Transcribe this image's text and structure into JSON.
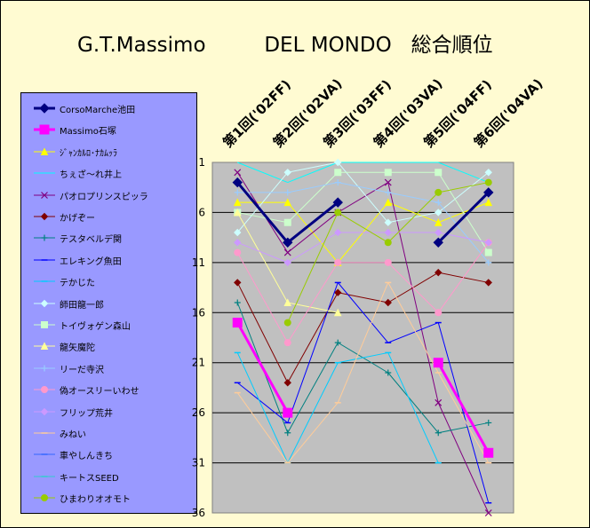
{
  "title": "G.T.Massimo         DEL MONDO   総合順位",
  "chart_data": {
    "type": "line",
    "title": "G.T.Massimo         DEL MONDO   総合順位",
    "categories": [
      "第1回('02FF)",
      "第2回('02VA)",
      "第3回('03FF)",
      "第4回('03VA)",
      "第5回('04FF)",
      "第6回('04VA)"
    ],
    "yaxis": {
      "inverted": true,
      "ylim": [
        1,
        36
      ],
      "ticks": [
        "1",
        "6",
        "11",
        "16",
        "21",
        "26",
        "31",
        "36"
      ],
      "grid": true
    },
    "legend_position": "left",
    "series": [
      {
        "name": "CorsoMarche池田",
        "color": "#000080",
        "marker": "diamond",
        "bold": true,
        "values": [
          3,
          9,
          5,
          null,
          9,
          4
        ]
      },
      {
        "name": "Massimo石塚",
        "color": "#ff00ff",
        "marker": "square",
        "bold": true,
        "values": [
          17,
          26,
          null,
          null,
          21,
          30
        ]
      },
      {
        "name": "ｼﾞｬﾝｶﾙﾛ･ﾅｶﾑｯﾗ",
        "color": "#ffff00",
        "marker": "triangle",
        "values": [
          5,
          5,
          11,
          5,
          7,
          5
        ]
      },
      {
        "name": "ちぇざ～れ井上",
        "color": "#00ffff",
        "marker": "none",
        "values": [
          1,
          3,
          1,
          1,
          1,
          3
        ]
      },
      {
        "name": "パオロプリンスピッラ",
        "color": "#800080",
        "marker": "x",
        "values": [
          2,
          10,
          6,
          3,
          25,
          36
        ]
      },
      {
        "name": "かげぞー",
        "color": "#800000",
        "marker": "diamond",
        "values": [
          13,
          23,
          14,
          15,
          12,
          13
        ]
      },
      {
        "name": "テスタベルデ関",
        "color": "#008080",
        "marker": "plus",
        "values": [
          15,
          28,
          19,
          22,
          28,
          27
        ]
      },
      {
        "name": "エレキング魚田",
        "color": "#0000ff",
        "marker": "dash",
        "values": [
          23,
          27,
          13,
          19,
          17,
          35
        ]
      },
      {
        "name": "テかじた",
        "color": "#00ccff",
        "marker": "dash",
        "values": [
          20,
          31,
          21,
          20,
          31,
          null
        ]
      },
      {
        "name": "師田龍一郎",
        "color": "#ccffff",
        "marker": "diamond",
        "values": [
          8,
          2,
          1,
          7,
          6,
          2
        ]
      },
      {
        "name": "トイヴォゲン森山",
        "color": "#ccffcc",
        "marker": "square",
        "values": [
          6,
          7,
          2,
          2,
          2,
          10
        ]
      },
      {
        "name": "龍矢魔陀",
        "color": "#ffff99",
        "marker": "triangle",
        "values": [
          6,
          15,
          16,
          null,
          null,
          null
        ]
      },
      {
        "name": "リーだ寺沢",
        "color": "#99ccff",
        "marker": "plus",
        "values": [
          4,
          4,
          3,
          4,
          5,
          11
        ]
      },
      {
        "name": "偽オースリーいわせ",
        "color": "#ff99cc",
        "marker": "circle",
        "values": [
          10,
          19,
          11,
          11,
          16,
          9
        ]
      },
      {
        "name": "フリップ荒井",
        "color": "#cc99ff",
        "marker": "diamond",
        "values": [
          9,
          11,
          8,
          8,
          8,
          9
        ]
      },
      {
        "name": "みねい",
        "color": "#ffcc99",
        "marker": "dash",
        "values": [
          24,
          31,
          25,
          13,
          22,
          31
        ]
      },
      {
        "name": "車やしんきち",
        "color": "#3366ff",
        "marker": "dash",
        "values": [
          null,
          null,
          null,
          null,
          null,
          null
        ]
      },
      {
        "name": "キートスSEED",
        "color": "#33cccc",
        "marker": "dash",
        "values": [
          null,
          null,
          null,
          null,
          null,
          null
        ]
      },
      {
        "name": "ひまわりオオモト",
        "color": "#99cc00",
        "marker": "circle",
        "values": [
          null,
          17,
          6,
          9,
          4,
          3
        ]
      }
    ]
  }
}
